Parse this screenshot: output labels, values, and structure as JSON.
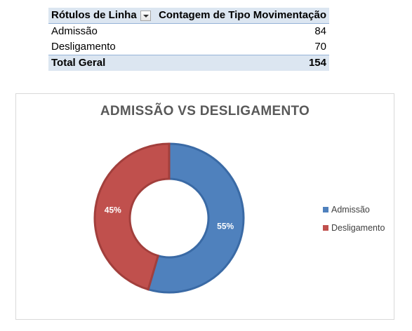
{
  "pivot": {
    "header": {
      "row_labels": "Rótulos de Linha",
      "value_header": "Contagem de Tipo Movimentação"
    },
    "rows": [
      {
        "label": "Admissão",
        "value": "84"
      },
      {
        "label": "Desligamento",
        "value": "70"
      }
    ],
    "total": {
      "label": "Total Geral",
      "value": "154"
    }
  },
  "chart_data": {
    "type": "pie",
    "subtype": "donut",
    "title": "ADMISSÃO VS DESLIGAMENTO",
    "legend_position": "right",
    "slices": [
      {
        "label": "Admissão",
        "value": 84,
        "percent_label": "55%",
        "color": "#4f81bd"
      },
      {
        "label": "Desligamento",
        "value": 70,
        "percent_label": "45%",
        "color": "#c0504d"
      }
    ]
  }
}
